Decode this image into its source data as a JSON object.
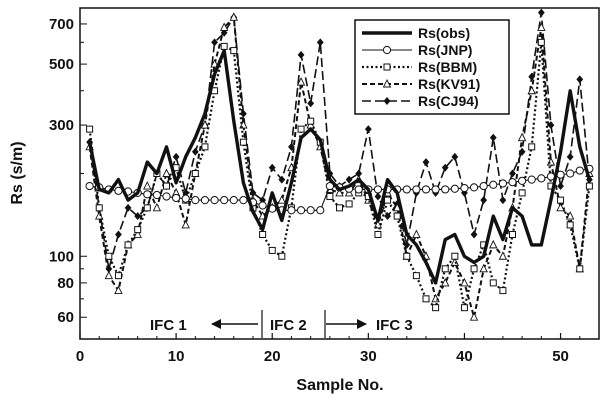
{
  "chart_data": {
    "type": "line",
    "xlabel": "Sample No.",
    "ylabel": "Rs (s/m)",
    "yscale": "log",
    "xlim": [
      0,
      54
    ],
    "ylim": [
      50,
      800
    ],
    "xticks": [
      0,
      10,
      20,
      30,
      40,
      50
    ],
    "yticks": [
      60,
      80,
      100,
      300,
      500,
      700
    ],
    "grid": false,
    "legend_position": "top-right",
    "series": [
      {
        "name": "Rs(obs)",
        "style": "thick-solid",
        "marker": "none",
        "x": [
          1,
          2,
          3,
          4,
          5,
          6,
          7,
          8,
          9,
          10,
          11,
          12,
          13,
          14,
          15,
          16,
          17,
          18,
          19,
          20,
          21,
          22,
          23,
          24,
          25,
          26,
          27,
          28,
          29,
          30,
          31,
          32,
          33,
          34,
          35,
          36,
          37,
          38,
          39,
          40,
          41,
          42,
          43,
          44,
          45,
          46,
          47,
          48,
          49,
          50,
          51,
          52,
          53
        ],
        "values": [
          260,
          175,
          170,
          190,
          160,
          170,
          220,
          200,
          250,
          185,
          230,
          270,
          330,
          460,
          560,
          310,
          185,
          145,
          125,
          170,
          135,
          185,
          270,
          290,
          265,
          190,
          175,
          180,
          190,
          175,
          135,
          190,
          170,
          120,
          110,
          95,
          80,
          115,
          120,
          100,
          95,
          100,
          140,
          115,
          150,
          140,
          110,
          110,
          160,
          240,
          400,
          250,
          190
        ]
      },
      {
        "name": "Rs(JNP)",
        "style": "thin-solid",
        "marker": "circle",
        "x": [
          1,
          2,
          3,
          4,
          5,
          6,
          7,
          8,
          9,
          10,
          11,
          12,
          13,
          14,
          15,
          16,
          17,
          18,
          19,
          20,
          21,
          22,
          23,
          24,
          25,
          26,
          27,
          28,
          29,
          30,
          31,
          32,
          33,
          34,
          35,
          36,
          37,
          38,
          39,
          40,
          41,
          42,
          43,
          44,
          45,
          46,
          47,
          48,
          49,
          50,
          51,
          52,
          53
        ],
        "values": [
          180,
          178,
          175,
          173,
          172,
          170,
          168,
          167,
          165,
          163,
          162,
          160,
          160,
          160,
          160,
          160,
          160,
          157,
          153,
          149,
          147,
          147,
          147,
          147,
          147,
          180,
          178,
          176,
          175,
          175,
          175,
          175,
          175,
          175,
          175,
          175,
          175,
          175,
          176,
          177,
          178,
          180,
          182,
          184,
          186,
          188,
          190,
          192,
          195,
          198,
          200,
          205,
          208
        ]
      },
      {
        "name": "Rs(BBM)",
        "style": "dotted",
        "marker": "square",
        "x": [
          1,
          2,
          3,
          4,
          5,
          6,
          7,
          8,
          9,
          10,
          11,
          12,
          13,
          14,
          15,
          16,
          17,
          18,
          19,
          20,
          21,
          22,
          23,
          24,
          25,
          26,
          27,
          28,
          29,
          30,
          31,
          32,
          33,
          34,
          35,
          36,
          37,
          38,
          39,
          40,
          41,
          42,
          43,
          44,
          45,
          46,
          47,
          48,
          49,
          50,
          51,
          52,
          53
        ],
        "values": [
          290,
          150,
          100,
          85,
          110,
          125,
          150,
          200,
          180,
          210,
          160,
          200,
          250,
          400,
          580,
          560,
          260,
          150,
          120,
          105,
          100,
          150,
          290,
          310,
          260,
          165,
          150,
          155,
          170,
          165,
          120,
          160,
          140,
          100,
          85,
          70,
          65,
          90,
          100,
          65,
          90,
          110,
          80,
          75,
          120,
          170,
          250,
          600,
          180,
          160,
          130,
          90,
          180
        ]
      },
      {
        "name": "Rs(KV91)",
        "style": "short-dash",
        "marker": "triangle",
        "x": [
          1,
          2,
          3,
          4,
          5,
          6,
          7,
          8,
          9,
          10,
          11,
          12,
          13,
          14,
          15,
          16,
          17,
          18,
          19,
          20,
          21,
          22,
          23,
          24,
          25,
          26,
          27,
          28,
          29,
          30,
          31,
          32,
          33,
          34,
          35,
          36,
          37,
          38,
          39,
          40,
          41,
          42,
          43,
          44,
          45,
          46,
          47,
          48,
          49,
          50,
          51,
          52,
          53
        ],
        "values": [
          250,
          140,
          85,
          75,
          110,
          120,
          180,
          150,
          200,
          170,
          130,
          200,
          300,
          500,
          680,
          740,
          300,
          160,
          140,
          150,
          160,
          210,
          430,
          300,
          250,
          175,
          170,
          170,
          190,
          160,
          130,
          170,
          150,
          100,
          120,
          100,
          70,
          80,
          95,
          80,
          60,
          90,
          110,
          100,
          150,
          270,
          400,
          680,
          220,
          150,
          140,
          90,
          200
        ]
      },
      {
        "name": "Rs(CJ94)",
        "style": "long-dash",
        "marker": "diamond",
        "x": [
          1,
          2,
          3,
          4,
          5,
          6,
          7,
          8,
          9,
          10,
          11,
          12,
          13,
          14,
          15,
          16,
          17,
          18,
          19,
          20,
          21,
          22,
          23,
          24,
          25,
          26,
          27,
          28,
          29,
          30,
          31,
          32,
          33,
          34,
          35,
          36,
          37,
          38,
          39,
          40,
          41,
          42,
          43,
          44,
          45,
          46,
          47,
          48,
          49,
          50,
          51,
          52,
          53
        ],
        "values": [
          260,
          150,
          90,
          120,
          150,
          140,
          150,
          200,
          180,
          230,
          170,
          240,
          300,
          600,
          650,
          740,
          330,
          170,
          160,
          210,
          190,
          250,
          540,
          360,
          600,
          200,
          180,
          190,
          200,
          290,
          165,
          140,
          155,
          110,
          170,
          220,
          170,
          210,
          230,
          170,
          120,
          160,
          270,
          160,
          200,
          240,
          450,
          770,
          300,
          180,
          230,
          440,
          190
        ]
      }
    ],
    "annotations": [
      {
        "text": "IFC 1"
      },
      {
        "text": "IFC 2"
      },
      {
        "text": "IFC 3"
      }
    ]
  }
}
